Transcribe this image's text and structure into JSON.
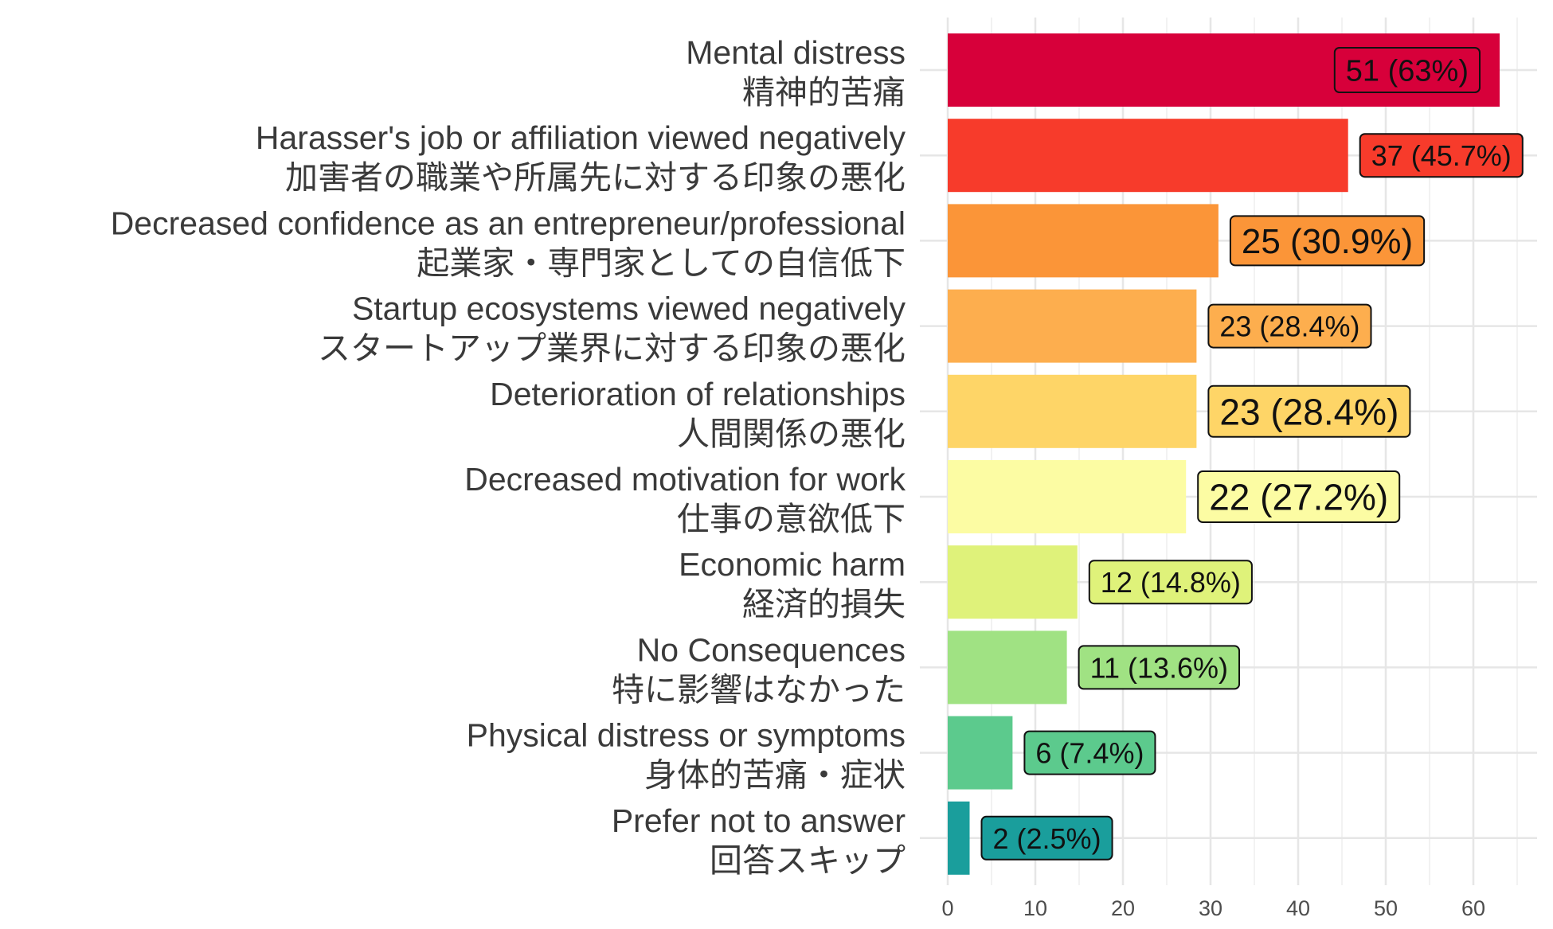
{
  "chart_data": {
    "type": "bar",
    "orientation": "horizontal",
    "title": "",
    "xlabel": "",
    "ylabel": "",
    "xlim": [
      0,
      65
    ],
    "x_ticks": [
      0,
      10,
      20,
      30,
      40,
      50,
      60
    ],
    "grid": true,
    "legend": "none",
    "categories": [
      {
        "en": "Mental distress",
        "ja": "精神的苦痛"
      },
      {
        "en": "Harasser's job or affiliation viewed negatively",
        "ja": "加害者の職業や所属先に対する印象の悪化"
      },
      {
        "en": "Decreased confidence as an entrepreneur/professional",
        "ja": "起業家・専門家としての自信低下"
      },
      {
        "en": "Startup ecosystems viewed negatively",
        "ja": "スタートアップ業界に対する印象の悪化"
      },
      {
        "en": "Deterioration of relationships",
        "ja": "人間関係の悪化"
      },
      {
        "en": "Decreased motivation for work",
        "ja": "仕事の意欲低下"
      },
      {
        "en": "Economic harm",
        "ja": "経済的損失"
      },
      {
        "en": "No Consequences",
        "ja": "特に影響はなかった"
      },
      {
        "en": "Physical distress or symptoms",
        "ja": "身体的苦痛・症状"
      },
      {
        "en": "Prefer not to answer",
        "ja": "回答スキップ"
      }
    ],
    "values": [
      51,
      37,
      25,
      23,
      23,
      22,
      12,
      11,
      6,
      2
    ],
    "bar_lengths": [
      63,
      45.7,
      30.9,
      28.4,
      28.4,
      27.2,
      14.8,
      13.6,
      7.4,
      2.5
    ],
    "data_labels": [
      "51 (63%)",
      "37 (45.7%)",
      "25 (30.9%)",
      "23 (28.4%)",
      "23 (28.4%)",
      "22 (27.2%)",
      "12 (14.8%)",
      "11 (13.6%)",
      "6 (7.4%)",
      "2 (2.5%)"
    ],
    "colors": [
      "#d7003a",
      "#f73b2b",
      "#fb9538",
      "#fdae4e",
      "#fed567",
      "#fcfca3",
      "#dff27a",
      "#a0e283",
      "#5cca8d",
      "#1a9e9c"
    ]
  }
}
